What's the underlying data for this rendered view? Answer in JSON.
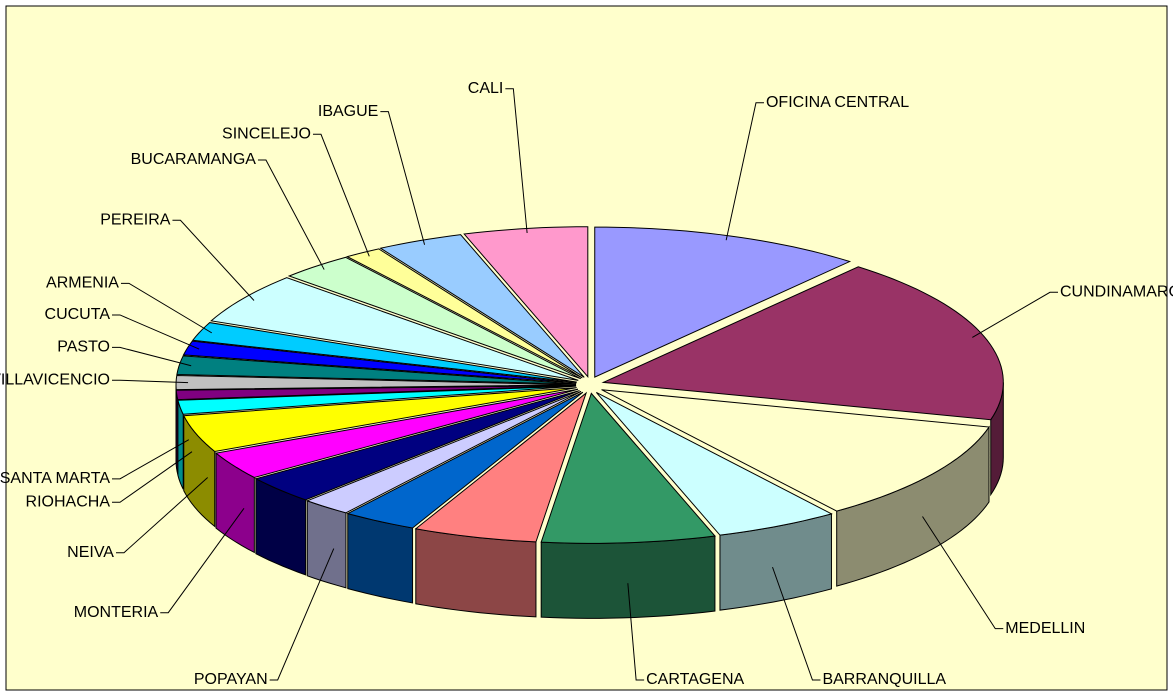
{
  "chart_data": {
    "type": "pie",
    "categories": [
      "OFICINA CENTRAL",
      "CUNDINAMARCA",
      "MEDELLIN",
      "BARRANQUILLA",
      "CARTAGENA",
      null,
      null,
      "POPAYAN",
      null,
      "MONTERIA",
      "NEIVA",
      "RIOHACHA",
      "SANTA MARTA",
      "VILLAVICENCIO",
      "PASTO",
      "CUCUTA",
      "ARMENIA",
      "PEREIRA",
      "BUCARAMANGA",
      "SINCELEJO",
      "IBAGUE",
      "CALI"
    ],
    "values": [
      11,
      18,
      11,
      5,
      7,
      5,
      3,
      2,
      3,
      3,
      4,
      1.5,
      1,
      1.5,
      2,
      1.5,
      2,
      5.5,
      3,
      1.5,
      3.5,
      5
    ],
    "colors": [
      "#9999ff",
      "#993366",
      "#ffffcc",
      "#ccffff",
      "#339966",
      "#ff8080",
      "#0066cc",
      "#ccccff",
      "#000080",
      "#ff00ff",
      "#ffff00",
      "#00ffff",
      "#800080",
      "#c0c0c0",
      "#008080",
      "#0000ff",
      "#00ccff",
      "#ccffff",
      "#ccffcc",
      "#ffff99",
      "#99ccff",
      "#ff99cc"
    ]
  }
}
